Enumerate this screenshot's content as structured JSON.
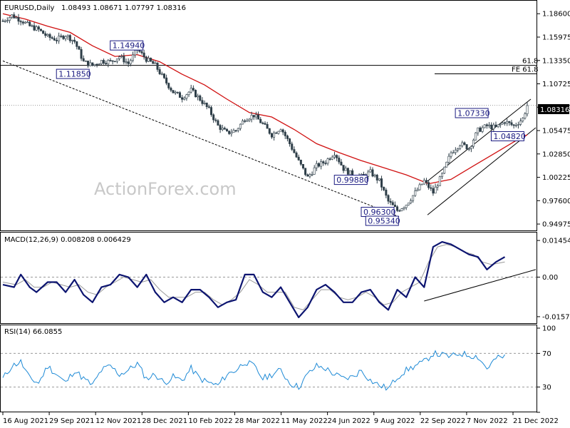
{
  "chart_data": [
    {
      "type": "candlestick",
      "title": "EURUSD,Daily",
      "ohlc_header": "1.08493 1.08671 1.07797 1.08316",
      "watermark": "ActionForex.com",
      "last_price": 1.08316,
      "last_price_label": "1.08316",
      "ylim": [
        0.945,
        1.195
      ],
      "y_ticks": [
        0.94975,
        0.976,
        1.00225,
        1.0285,
        1.05475,
        1.081,
        1.10725,
        1.1335,
        1.15975,
        1.186
      ],
      "y_tick_labels": [
        "0.94975",
        "0.97600",
        "1.00225",
        "1.02850",
        "1.05475",
        "1.08100",
        "1.10725",
        "1.13350",
        "1.15975",
        "1.18600"
      ],
      "x_labels": [
        "16 Aug 2021",
        "29 Sep 2021",
        "12 Nov 2021",
        "28 Dec 2021",
        "10 Feb 2022",
        "28 Mar 2022",
        "11 May 2022",
        "24 Jun 2022",
        "9 Aug 2022",
        "22 Sep 2022",
        "7 Nov 2022",
        "21 Dec 2022"
      ],
      "price_path": [
        [
          0,
          1.178
        ],
        [
          4,
          1.184
        ],
        [
          8,
          1.179
        ],
        [
          12,
          1.172
        ],
        [
          16,
          1.168
        ],
        [
          20,
          1.16
        ],
        [
          24,
          1.157
        ],
        [
          28,
          1.162
        ],
        [
          32,
          1.155
        ],
        [
          36,
          1.132
        ],
        [
          40,
          1.128
        ],
        [
          44,
          1.133
        ],
        [
          48,
          1.132
        ],
        [
          52,
          1.138
        ],
        [
          56,
          1.13
        ],
        [
          60,
          1.146
        ],
        [
          64,
          1.135
        ],
        [
          68,
          1.128
        ],
        [
          72,
          1.112
        ],
        [
          76,
          1.098
        ],
        [
          80,
          1.092
        ],
        [
          84,
          1.1
        ],
        [
          88,
          1.09
        ],
        [
          92,
          1.078
        ],
        [
          96,
          1.06
        ],
        [
          100,
          1.052
        ],
        [
          104,
          1.055
        ],
        [
          108,
          1.068
        ],
        [
          112,
          1.072
        ],
        [
          116,
          1.062
        ],
        [
          120,
          1.05
        ],
        [
          124,
          1.058
        ],
        [
          128,
          1.04
        ],
        [
          132,
          1.02
        ],
        [
          136,
          1.002
        ],
        [
          140,
          1.015
        ],
        [
          144,
          1.02
        ],
        [
          148,
          1.03
        ],
        [
          152,
          1.012
        ],
        [
          156,
          1.005
        ],
        [
          160,
          1.003
        ],
        [
          164,
          1.008
        ],
        [
          168,
          0.998
        ],
        [
          172,
          0.975
        ],
        [
          176,
          0.965
        ],
        [
          180,
          0.972
        ],
        [
          184,
          0.985
        ],
        [
          188,
          0.998
        ],
        [
          192,
          0.985
        ],
        [
          196,
          1.005
        ],
        [
          200,
          1.03
        ],
        [
          204,
          1.04
        ],
        [
          208,
          1.035
        ],
        [
          212,
          1.055
        ],
        [
          216,
          1.06
        ],
        [
          220,
          1.058
        ],
        [
          224,
          1.065
        ],
        [
          228,
          1.06
        ],
        [
          232,
          1.068
        ],
        [
          234,
          1.083
        ]
      ],
      "ma_path": [
        [
          0,
          1.186
        ],
        [
          10,
          1.18
        ],
        [
          20,
          1.172
        ],
        [
          30,
          1.165
        ],
        [
          40,
          1.15
        ],
        [
          50,
          1.138
        ],
        [
          60,
          1.14
        ],
        [
          70,
          1.132
        ],
        [
          80,
          1.118
        ],
        [
          90,
          1.106
        ],
        [
          100,
          1.09
        ],
        [
          110,
          1.075
        ],
        [
          120,
          1.07
        ],
        [
          130,
          1.056
        ],
        [
          140,
          1.04
        ],
        [
          150,
          1.03
        ],
        [
          160,
          1.021
        ],
        [
          170,
          1.013
        ],
        [
          180,
          1.005
        ],
        [
          190,
          0.995
        ],
        [
          200,
          1.0
        ],
        [
          210,
          1.015
        ],
        [
          220,
          1.03
        ],
        [
          230,
          1.045
        ],
        [
          234,
          1.05
        ]
      ],
      "h_lines": [
        {
          "value": 1.128,
          "style": "solid",
          "label": "61.8"
        },
        {
          "value": 1.1185,
          "style": "solid_short",
          "label": "FE 61.8"
        },
        {
          "value": 1.0831,
          "style": "dotted",
          "label": ""
        }
      ],
      "annotations": [
        {
          "text": "1.11850",
          "x": 36,
          "y": 1.118
        },
        {
          "text": "1.14940",
          "x": 60,
          "y": 1.15
        },
        {
          "text": "0.99880",
          "x": 160,
          "y": 0.999
        },
        {
          "text": "0.96300",
          "x": 172,
          "y": 0.963
        },
        {
          "text": "0.95340",
          "x": 174,
          "y": 0.953
        },
        {
          "text": "1.07330",
          "x": 214,
          "y": 1.074
        },
        {
          "text": "1.04820",
          "x": 230,
          "y": 1.048
        }
      ]
    },
    {
      "type": "line",
      "title": "MACD(12,26,9) 0.008208 0.006429",
      "ylim": [
        -0.018,
        0.016
      ],
      "y_ticks": [
        0.0,
        0.014549,
        -0.015712
      ],
      "y_tick_labels": [
        "0.00",
        "0.014549",
        "-0.015712"
      ],
      "macd": [
        [
          0,
          -0.003
        ],
        [
          5,
          -0.004
        ],
        [
          8,
          0.001
        ],
        [
          12,
          -0.004
        ],
        [
          15,
          -0.006
        ],
        [
          20,
          -0.002
        ],
        [
          24,
          -0.002
        ],
        [
          28,
          -0.006
        ],
        [
          32,
          -0.001
        ],
        [
          36,
          -0.007
        ],
        [
          40,
          -0.01
        ],
        [
          44,
          -0.004
        ],
        [
          48,
          -0.003
        ],
        [
          52,
          0.001
        ],
        [
          56,
          0.0
        ],
        [
          60,
          -0.004
        ],
        [
          64,
          0.001
        ],
        [
          68,
          -0.006
        ],
        [
          72,
          -0.01
        ],
        [
          76,
          -0.008
        ],
        [
          80,
          -0.01
        ],
        [
          84,
          -0.005
        ],
        [
          88,
          -0.005
        ],
        [
          92,
          -0.008
        ],
        [
          96,
          -0.012
        ],
        [
          100,
          -0.01
        ],
        [
          104,
          -0.009
        ],
        [
          108,
          0.001
        ],
        [
          112,
          0.001
        ],
        [
          116,
          -0.006
        ],
        [
          120,
          -0.008
        ],
        [
          124,
          -0.004
        ],
        [
          128,
          -0.01
        ],
        [
          132,
          -0.016
        ],
        [
          136,
          -0.012
        ],
        [
          140,
          -0.005
        ],
        [
          144,
          -0.003
        ],
        [
          148,
          -0.006
        ],
        [
          152,
          -0.01
        ],
        [
          156,
          -0.01
        ],
        [
          160,
          -0.006
        ],
        [
          164,
          -0.005
        ],
        [
          168,
          -0.01
        ],
        [
          172,
          -0.013
        ],
        [
          176,
          -0.005
        ],
        [
          180,
          -0.008
        ],
        [
          184,
          0.0
        ],
        [
          188,
          -0.004
        ],
        [
          192,
          0.012
        ],
        [
          196,
          0.014
        ],
        [
          200,
          0.013
        ],
        [
          204,
          0.011
        ],
        [
          208,
          0.009
        ],
        [
          212,
          0.008
        ],
        [
          216,
          0.003
        ],
        [
          220,
          0.006
        ],
        [
          224,
          0.008
        ]
      ],
      "signal": [
        [
          0,
          -0.002
        ],
        [
          6,
          -0.003
        ],
        [
          10,
          -0.001
        ],
        [
          14,
          -0.004
        ],
        [
          18,
          -0.004
        ],
        [
          22,
          -0.002
        ],
        [
          26,
          -0.003
        ],
        [
          30,
          -0.004
        ],
        [
          34,
          -0.003
        ],
        [
          38,
          -0.006
        ],
        [
          42,
          -0.007
        ],
        [
          46,
          -0.004
        ],
        [
          50,
          -0.002
        ],
        [
          54,
          0.0
        ],
        [
          58,
          -0.001
        ],
        [
          62,
          -0.002
        ],
        [
          66,
          -0.001
        ],
        [
          70,
          -0.005
        ],
        [
          74,
          -0.008
        ],
        [
          78,
          -0.008
        ],
        [
          82,
          -0.008
        ],
        [
          86,
          -0.006
        ],
        [
          90,
          -0.006
        ],
        [
          94,
          -0.009
        ],
        [
          98,
          -0.011
        ],
        [
          102,
          -0.009
        ],
        [
          106,
          -0.006
        ],
        [
          110,
          -0.001
        ],
        [
          114,
          -0.003
        ],
        [
          118,
          -0.006
        ],
        [
          122,
          -0.006
        ],
        [
          126,
          -0.006
        ],
        [
          130,
          -0.012
        ],
        [
          134,
          -0.013
        ],
        [
          138,
          -0.009
        ],
        [
          142,
          -0.005
        ],
        [
          146,
          -0.005
        ],
        [
          150,
          -0.008
        ],
        [
          154,
          -0.009
        ],
        [
          158,
          -0.008
        ],
        [
          162,
          -0.006
        ],
        [
          166,
          -0.008
        ],
        [
          170,
          -0.011
        ],
        [
          174,
          -0.01
        ],
        [
          178,
          -0.006
        ],
        [
          182,
          -0.004
        ],
        [
          186,
          -0.002
        ],
        [
          190,
          0.006
        ],
        [
          194,
          0.012
        ],
        [
          198,
          0.013
        ],
        [
          202,
          0.012
        ],
        [
          206,
          0.01
        ],
        [
          210,
          0.009
        ],
        [
          214,
          0.006
        ],
        [
          218,
          0.005
        ],
        [
          224,
          0.006
        ]
      ]
    },
    {
      "type": "line",
      "title": "RSI(14) 66.0855",
      "ylim": [
        0,
        100
      ],
      "y_ticks": [
        100,
        70,
        30,
        0
      ],
      "y_tick_labels": [
        "100",
        "70",
        "30",
        "0"
      ],
      "rsi": [
        [
          0,
          40
        ],
        [
          4,
          55
        ],
        [
          8,
          60
        ],
        [
          12,
          40
        ],
        [
          16,
          35
        ],
        [
          20,
          55
        ],
        [
          24,
          45
        ],
        [
          28,
          35
        ],
        [
          32,
          50
        ],
        [
          36,
          40
        ],
        [
          40,
          32
        ],
        [
          44,
          50
        ],
        [
          48,
          55
        ],
        [
          52,
          45
        ],
        [
          56,
          50
        ],
        [
          60,
          58
        ],
        [
          64,
          40
        ],
        [
          68,
          45
        ],
        [
          72,
          35
        ],
        [
          76,
          42
        ],
        [
          80,
          38
        ],
        [
          84,
          52
        ],
        [
          88,
          40
        ],
        [
          92,
          35
        ],
        [
          96,
          32
        ],
        [
          100,
          45
        ],
        [
          104,
          50
        ],
        [
          108,
          60
        ],
        [
          112,
          55
        ],
        [
          116,
          40
        ],
        [
          120,
          45
        ],
        [
          124,
          50
        ],
        [
          128,
          35
        ],
        [
          132,
          30
        ],
        [
          136,
          45
        ],
        [
          140,
          55
        ],
        [
          144,
          52
        ],
        [
          148,
          45
        ],
        [
          152,
          40
        ],
        [
          156,
          42
        ],
        [
          160,
          50
        ],
        [
          164,
          38
        ],
        [
          168,
          32
        ],
        [
          172,
          28
        ],
        [
          176,
          42
        ],
        [
          180,
          50
        ],
        [
          184,
          55
        ],
        [
          188,
          60
        ],
        [
          192,
          70
        ],
        [
          196,
          68
        ],
        [
          200,
          66
        ],
        [
          204,
          70
        ],
        [
          208,
          68
        ],
        [
          212,
          66
        ],
        [
          216,
          52
        ],
        [
          220,
          64
        ],
        [
          224,
          66
        ]
      ]
    }
  ]
}
